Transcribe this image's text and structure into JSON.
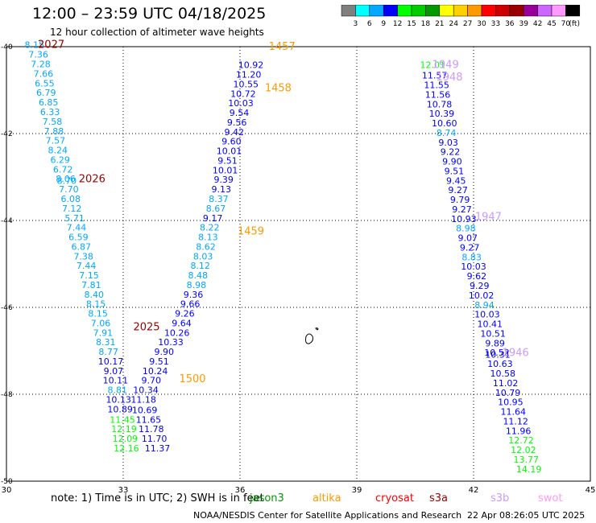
{
  "header": {
    "title": "12:00 – 23:59 UTC 04/18/2025",
    "subtitle": "12 hour collection of altimeter wave heights"
  },
  "color_scale": {
    "ticks": [
      "3",
      "6",
      "9",
      "12",
      "15",
      "18",
      "21",
      "24",
      "27",
      "30",
      "33",
      "36",
      "39",
      "42",
      "45",
      "70"
    ],
    "unit": "(ft)",
    "colors": [
      "#7f7f7f",
      "#00ffff",
      "#00a8ff",
      "#0000ff",
      "#00ff00",
      "#00cc00",
      "#009900",
      "#ffff00",
      "#ffd000",
      "#ff9900",
      "#ff0000",
      "#cc0000",
      "#990000",
      "#990099",
      "#cc66ff",
      "#ff99ff",
      "#000000"
    ]
  },
  "chart_data": {
    "type": "scatter",
    "xlim": [
      30,
      45
    ],
    "ylim": [
      -50,
      -40
    ],
    "x_ticks": [
      "30",
      "33",
      "36",
      "39",
      "42",
      "45"
    ],
    "y_ticks": [
      "-40",
      "-42",
      "-44",
      "-46",
      "-48",
      "-50"
    ],
    "grid": true,
    "points": [
      {
        "x": 30.72,
        "y": -39.95,
        "v": "8.15",
        "c": "#00a8ff"
      },
      {
        "x": 30.82,
        "y": -40.18,
        "v": "7.36",
        "c": "#00a8ff"
      },
      {
        "x": 30.88,
        "y": -40.4,
        "v": "7.28",
        "c": "#00a8ff"
      },
      {
        "x": 30.95,
        "y": -40.62,
        "v": "7.66",
        "c": "#00a8ff"
      },
      {
        "x": 30.98,
        "y": -40.84,
        "v": "6.55",
        "c": "#00a8ff"
      },
      {
        "x": 31.02,
        "y": -41.06,
        "v": "6.79",
        "c": "#00a8ff"
      },
      {
        "x": 31.08,
        "y": -41.28,
        "v": "6.85",
        "c": "#00a8ff"
      },
      {
        "x": 31.12,
        "y": -41.5,
        "v": "6.33",
        "c": "#00a8ff"
      },
      {
        "x": 31.18,
        "y": -41.72,
        "v": "7.58",
        "c": "#00a8ff"
      },
      {
        "x": 31.22,
        "y": -41.94,
        "v": "7.88",
        "c": "#00a8ff"
      },
      {
        "x": 31.26,
        "y": -42.16,
        "v": "7.57",
        "c": "#00a8ff"
      },
      {
        "x": 31.32,
        "y": -42.38,
        "v": "8.24",
        "c": "#00a8ff"
      },
      {
        "x": 31.38,
        "y": -42.6,
        "v": "6.29",
        "c": "#00a8ff"
      },
      {
        "x": 31.45,
        "y": -42.82,
        "v": "6.72",
        "c": "#00a8ff"
      },
      {
        "x": 31.52,
        "y": -43.04,
        "v": "8.06",
        "c": "#00a8ff"
      },
      {
        "x": 31.55,
        "y": -43.08,
        "v": "8.70",
        "c": "#00a8ff"
      },
      {
        "x": 31.6,
        "y": -43.28,
        "v": "7.70",
        "c": "#00a8ff"
      },
      {
        "x": 31.65,
        "y": -43.5,
        "v": "6.08",
        "c": "#00a8ff"
      },
      {
        "x": 31.68,
        "y": -43.72,
        "v": "7.12",
        "c": "#00a8ff"
      },
      {
        "x": 31.75,
        "y": -43.94,
        "v": "5.71",
        "c": "#00a8ff"
      },
      {
        "x": 31.8,
        "y": -44.16,
        "v": "7.44",
        "c": "#00a8ff"
      },
      {
        "x": 31.85,
        "y": -44.38,
        "v": "6.59",
        "c": "#00a8ff"
      },
      {
        "x": 31.92,
        "y": -44.6,
        "v": "6.87",
        "c": "#00a8ff"
      },
      {
        "x": 31.98,
        "y": -44.82,
        "v": "7.38",
        "c": "#00a8ff"
      },
      {
        "x": 32.05,
        "y": -45.04,
        "v": "7.44",
        "c": "#00a8ff"
      },
      {
        "x": 32.12,
        "y": -45.26,
        "v": "7.15",
        "c": "#00a8ff"
      },
      {
        "x": 32.18,
        "y": -45.48,
        "v": "7.81",
        "c": "#00a8ff"
      },
      {
        "x": 32.25,
        "y": -45.7,
        "v": "8.40",
        "c": "#00a8ff"
      },
      {
        "x": 32.3,
        "y": -45.92,
        "v": "8.15",
        "c": "#00a8ff"
      },
      {
        "x": 32.35,
        "y": -46.14,
        "v": "8.15",
        "c": "#00a8ff"
      },
      {
        "x": 32.42,
        "y": -46.36,
        "v": "7.06",
        "c": "#00a8ff"
      },
      {
        "x": 32.48,
        "y": -46.58,
        "v": "7.91",
        "c": "#00a8ff"
      },
      {
        "x": 32.55,
        "y": -46.8,
        "v": "8.31",
        "c": "#00a8ff"
      },
      {
        "x": 32.62,
        "y": -47.02,
        "v": "8.77",
        "c": "#00a8ff"
      },
      {
        "x": 32.68,
        "y": -47.24,
        "v": "10.17",
        "c": "#0000ff"
      },
      {
        "x": 32.75,
        "y": -47.46,
        "v": "9.07",
        "c": "#0000ff"
      },
      {
        "x": 32.8,
        "y": -47.68,
        "v": "10.11",
        "c": "#0000ff"
      },
      {
        "x": 32.85,
        "y": -47.9,
        "v": "8.81",
        "c": "#00a8ff"
      },
      {
        "x": 32.88,
        "y": -48.12,
        "v": "10.13",
        "c": "#0000ff"
      },
      {
        "x": 32.92,
        "y": -48.34,
        "v": "10.89",
        "c": "#0000ff"
      },
      {
        "x": 32.98,
        "y": -48.58,
        "v": "11.45",
        "c": "#00ff00"
      },
      {
        "x": 33.02,
        "y": -48.8,
        "v": "12.19",
        "c": "#00ff00"
      },
      {
        "x": 33.05,
        "y": -49.02,
        "v": "12.09",
        "c": "#00ff00"
      },
      {
        "x": 33.08,
        "y": -49.24,
        "v": "12.16",
        "c": "#00ff00"
      },
      {
        "x": 33.88,
        "y": -49.24,
        "v": "11.37",
        "c": "#0000ff"
      },
      {
        "x": 33.8,
        "y": -49.02,
        "v": "11.70",
        "c": "#0000ff"
      },
      {
        "x": 33.72,
        "y": -48.8,
        "v": "11.78",
        "c": "#0000ff"
      },
      {
        "x": 33.65,
        "y": -48.58,
        "v": "11.65",
        "c": "#0000ff"
      },
      {
        "x": 33.55,
        "y": -48.36,
        "v": "10.69",
        "c": "#0000ff"
      },
      {
        "x": 33.52,
        "y": -48.12,
        "v": "11.18",
        "c": "#0000ff"
      },
      {
        "x": 33.58,
        "y": -47.9,
        "v": "10.34",
        "c": "#0000ff"
      },
      {
        "x": 33.72,
        "y": -47.68,
        "v": "9.70",
        "c": "#0000ff"
      },
      {
        "x": 33.82,
        "y": -47.46,
        "v": "10.24",
        "c": "#0000ff"
      },
      {
        "x": 33.92,
        "y": -47.24,
        "v": "9.51",
        "c": "#0000ff"
      },
      {
        "x": 34.05,
        "y": -47.02,
        "v": "9.90",
        "c": "#0000ff"
      },
      {
        "x": 34.22,
        "y": -46.8,
        "v": "10.33",
        "c": "#0000ff"
      },
      {
        "x": 34.38,
        "y": -46.58,
        "v": "10.26",
        "c": "#0000ff"
      },
      {
        "x": 34.5,
        "y": -46.36,
        "v": "9.64",
        "c": "#0000ff"
      },
      {
        "x": 34.58,
        "y": -46.14,
        "v": "9.26",
        "c": "#0000ff"
      },
      {
        "x": 34.72,
        "y": -45.92,
        "v": "9.66",
        "c": "#0000ff"
      },
      {
        "x": 34.8,
        "y": -45.7,
        "v": "9.36",
        "c": "#0000ff"
      },
      {
        "x": 34.88,
        "y": -45.48,
        "v": "8.98",
        "c": "#00a8ff"
      },
      {
        "x": 34.92,
        "y": -45.26,
        "v": "8.48",
        "c": "#00a8ff"
      },
      {
        "x": 34.98,
        "y": -45.04,
        "v": "8.12",
        "c": "#00a8ff"
      },
      {
        "x": 35.05,
        "y": -44.82,
        "v": "8.03",
        "c": "#00a8ff"
      },
      {
        "x": 35.12,
        "y": -44.6,
        "v": "8.62",
        "c": "#00a8ff"
      },
      {
        "x": 35.18,
        "y": -44.38,
        "v": "8.13",
        "c": "#00a8ff"
      },
      {
        "x": 35.22,
        "y": -44.16,
        "v": "8.22",
        "c": "#00a8ff"
      },
      {
        "x": 35.3,
        "y": -43.94,
        "v": "9.17",
        "c": "#0000ff"
      },
      {
        "x": 35.38,
        "y": -43.72,
        "v": "8.67",
        "c": "#00a8ff"
      },
      {
        "x": 35.45,
        "y": -43.5,
        "v": "8.37",
        "c": "#00a8ff"
      },
      {
        "x": 35.52,
        "y": -43.28,
        "v": "9.13",
        "c": "#0000ff"
      },
      {
        "x": 35.58,
        "y": -43.06,
        "v": "9.39",
        "c": "#0000ff"
      },
      {
        "x": 35.62,
        "y": -42.84,
        "v": "10.01",
        "c": "#0000ff"
      },
      {
        "x": 35.68,
        "y": -42.62,
        "v": "9.51",
        "c": "#0000ff"
      },
      {
        "x": 35.72,
        "y": -42.4,
        "v": "10.01",
        "c": "#0000ff"
      },
      {
        "x": 35.78,
        "y": -42.18,
        "v": "9.60",
        "c": "#0000ff"
      },
      {
        "x": 35.85,
        "y": -41.96,
        "v": "9.42",
        "c": "#0000ff"
      },
      {
        "x": 35.92,
        "y": -41.74,
        "v": "9.56",
        "c": "#0000ff"
      },
      {
        "x": 35.98,
        "y": -41.52,
        "v": "9.54",
        "c": "#0000ff"
      },
      {
        "x": 36.02,
        "y": -41.3,
        "v": "10.03",
        "c": "#0000ff"
      },
      {
        "x": 36.08,
        "y": -41.08,
        "v": "10.72",
        "c": "#0000ff"
      },
      {
        "x": 36.15,
        "y": -40.86,
        "v": "10.55",
        "c": "#0000ff"
      },
      {
        "x": 36.22,
        "y": -40.64,
        "v": "11.20",
        "c": "#0000ff"
      },
      {
        "x": 36.28,
        "y": -40.42,
        "v": "10.92",
        "c": "#0000ff"
      },
      {
        "x": 40.95,
        "y": -40.42,
        "v": "12.01",
        "c": "#00ff00"
      },
      {
        "x": 41.0,
        "y": -40.66,
        "v": "11.57",
        "c": "#0000ff"
      },
      {
        "x": 41.05,
        "y": -40.88,
        "v": "11.55",
        "c": "#0000ff"
      },
      {
        "x": 41.08,
        "y": -41.1,
        "v": "11.56",
        "c": "#0000ff"
      },
      {
        "x": 41.12,
        "y": -41.32,
        "v": "10.78",
        "c": "#0000ff"
      },
      {
        "x": 41.18,
        "y": -41.54,
        "v": "10.39",
        "c": "#0000ff"
      },
      {
        "x": 41.25,
        "y": -41.76,
        "v": "10.60",
        "c": "#0000ff"
      },
      {
        "x": 41.3,
        "y": -41.98,
        "v": "8.74",
        "c": "#00a8ff"
      },
      {
        "x": 41.35,
        "y": -42.2,
        "v": "9.03",
        "c": "#0000ff"
      },
      {
        "x": 41.4,
        "y": -42.42,
        "v": "9.22",
        "c": "#0000ff"
      },
      {
        "x": 41.45,
        "y": -42.64,
        "v": "9.90",
        "c": "#0000ff"
      },
      {
        "x": 41.5,
        "y": -42.86,
        "v": "9.51",
        "c": "#0000ff"
      },
      {
        "x": 41.55,
        "y": -43.08,
        "v": "9.45",
        "c": "#0000ff"
      },
      {
        "x": 41.6,
        "y": -43.3,
        "v": "9.27",
        "c": "#0000ff"
      },
      {
        "x": 41.65,
        "y": -43.52,
        "v": "9.79",
        "c": "#0000ff"
      },
      {
        "x": 41.7,
        "y": -43.74,
        "v": "9.27",
        "c": "#0000ff"
      },
      {
        "x": 41.75,
        "y": -43.96,
        "v": "10.93",
        "c": "#0000ff"
      },
      {
        "x": 41.8,
        "y": -44.18,
        "v": "8.98",
        "c": "#00a8ff"
      },
      {
        "x": 41.85,
        "y": -44.4,
        "v": "9.07",
        "c": "#0000ff"
      },
      {
        "x": 41.9,
        "y": -44.62,
        "v": "9.27",
        "c": "#0000ff"
      },
      {
        "x": 41.95,
        "y": -44.84,
        "v": "8.83",
        "c": "#00a8ff"
      },
      {
        "x": 42.0,
        "y": -45.06,
        "v": "10.03",
        "c": "#0000ff"
      },
      {
        "x": 42.08,
        "y": -45.28,
        "v": "9.62",
        "c": "#0000ff"
      },
      {
        "x": 42.15,
        "y": -45.5,
        "v": "9.29",
        "c": "#0000ff"
      },
      {
        "x": 42.2,
        "y": -45.72,
        "v": "10.02",
        "c": "#0000ff"
      },
      {
        "x": 42.28,
        "y": -45.94,
        "v": "8.94",
        "c": "#00a8ff"
      },
      {
        "x": 42.35,
        "y": -46.16,
        "v": "10.03",
        "c": "#0000ff"
      },
      {
        "x": 42.42,
        "y": -46.38,
        "v": "10.41",
        "c": "#0000ff"
      },
      {
        "x": 42.5,
        "y": -46.6,
        "v": "10.51",
        "c": "#0000ff"
      },
      {
        "x": 42.55,
        "y": -46.82,
        "v": "9.89",
        "c": "#0000ff"
      },
      {
        "x": 42.6,
        "y": -47.04,
        "v": "10.52",
        "c": "#0000ff"
      },
      {
        "x": 42.62,
        "y": -47.08,
        "v": "10.31",
        "c": "#0000ff"
      },
      {
        "x": 42.68,
        "y": -47.3,
        "v": "10.63",
        "c": "#0000ff"
      },
      {
        "x": 42.75,
        "y": -47.52,
        "v": "10.58",
        "c": "#0000ff"
      },
      {
        "x": 42.82,
        "y": -47.74,
        "v": "11.02",
        "c": "#0000ff"
      },
      {
        "x": 42.88,
        "y": -47.96,
        "v": "10.79",
        "c": "#0000ff"
      },
      {
        "x": 42.95,
        "y": -48.18,
        "v": "10.95",
        "c": "#0000ff"
      },
      {
        "x": 43.02,
        "y": -48.4,
        "v": "11.64",
        "c": "#0000ff"
      },
      {
        "x": 43.08,
        "y": -48.62,
        "v": "11.12",
        "c": "#0000ff"
      },
      {
        "x": 43.15,
        "y": -48.84,
        "v": "11.96",
        "c": "#0000ff"
      },
      {
        "x": 43.22,
        "y": -49.06,
        "v": "12.72",
        "c": "#00ff00"
      },
      {
        "x": 43.28,
        "y": -49.28,
        "v": "12.02",
        "c": "#00ff00"
      },
      {
        "x": 43.35,
        "y": -49.5,
        "v": "13.77",
        "c": "#00ff00"
      },
      {
        "x": 43.42,
        "y": -49.72,
        "v": "14.19",
        "c": "#00ff00"
      }
    ],
    "time_labels": [
      {
        "x": 31.15,
        "y": -39.95,
        "text": "2027",
        "c": "#990000"
      },
      {
        "x": 32.2,
        "y": -43.05,
        "text": "2026",
        "c": "#990000"
      },
      {
        "x": 33.6,
        "y": -46.45,
        "text": "2025",
        "c": "#990000"
      },
      {
        "x": 34.78,
        "y": -47.65,
        "text": "1500",
        "c": "#ff9900"
      },
      {
        "x": 37.08,
        "y": -40.0,
        "text": "1457",
        "c": "#ff9900"
      },
      {
        "x": 36.98,
        "y": -40.95,
        "text": "1458",
        "c": "#ff9900"
      },
      {
        "x": 36.28,
        "y": -44.25,
        "text": "1459",
        "c": "#ff9900"
      },
      {
        "x": 41.28,
        "y": -40.42,
        "text": "1949",
        "c": "#cc99ff"
      },
      {
        "x": 41.38,
        "y": -40.7,
        "text": "1948",
        "c": "#cc99ff"
      },
      {
        "x": 42.38,
        "y": -43.92,
        "text": "1947",
        "c": "#cc99ff"
      },
      {
        "x": 43.08,
        "y": -47.05,
        "text": "1946",
        "c": "#cc99ff"
      }
    ]
  },
  "footer": {
    "note": "note:  1) Time is in UTC;  2) SWH is in feet",
    "credit": "NOAA/NESDIS Center for Satellite Applications and Research",
    "timestamp": "22 Apr 08:26:05 UTC 2025",
    "missions": [
      {
        "label": "jason3",
        "color": "#009900"
      },
      {
        "label": "altika",
        "color": "#ff9900"
      },
      {
        "label": "cryosat",
        "color": "#ff0000"
      },
      {
        "label": "s3a",
        "color": "#990000"
      },
      {
        "label": "s3b",
        "color": "#cc99ff"
      },
      {
        "label": "swot",
        "color": "#ff99ff"
      }
    ]
  }
}
